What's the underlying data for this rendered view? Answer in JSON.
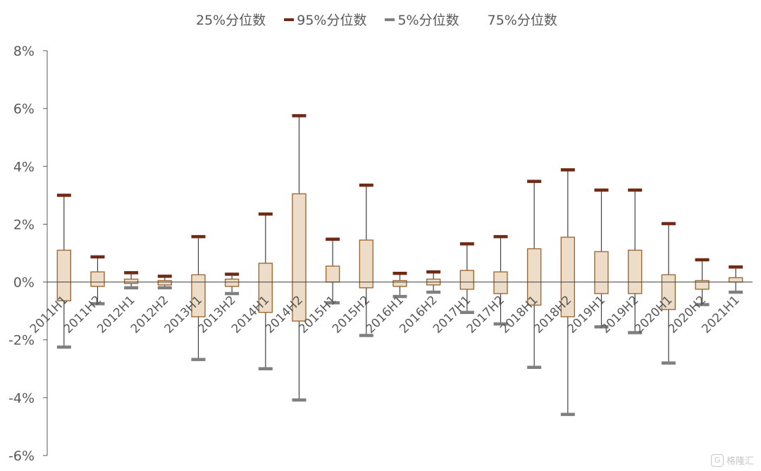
{
  "legend": [
    {
      "label": "25%分位数",
      "color": "",
      "has_swatch": false
    },
    {
      "label": "95%分位数",
      "color": "#6e2a14",
      "has_swatch": true
    },
    {
      "label": "5%分位数",
      "color": "#7f7f7f",
      "has_swatch": true
    },
    {
      "label": "75%分位数",
      "color": "",
      "has_swatch": false
    }
  ],
  "watermark": {
    "icon_text": "G",
    "text": "格隆汇"
  },
  "chart_data": {
    "type": "boxplot",
    "title": "",
    "xlabel": "",
    "ylabel": "",
    "ylim": [
      -6,
      8
    ],
    "yticks": [
      -6,
      -4,
      -2,
      0,
      2,
      4,
      6,
      8
    ],
    "ytick_labels": [
      "-6%",
      "-4%",
      "-2%",
      "0%",
      "2%",
      "4%",
      "6%",
      "8%"
    ],
    "grid": false,
    "legend_position": "top",
    "colors": {
      "box_fill": "#ecdcc8",
      "box_stroke": "#9e6a36",
      "p95": "#6e2a14",
      "p5": "#7f7f7f",
      "whisker": "#404040",
      "axis": "#595959"
    },
    "categories": [
      "2011H1",
      "2011H2",
      "2012H1",
      "2012H2",
      "2013H1",
      "2013H2",
      "2014H1",
      "2014H2",
      "2015H1",
      "2015H2",
      "2016H1",
      "2016H2",
      "2017H1",
      "2017H2",
      "2018H1",
      "2018H2",
      "2019H1",
      "2019H2",
      "2020H1",
      "2020H2",
      "2021H1"
    ],
    "series": [
      {
        "name": "25%分位数",
        "values": [
          -0.65,
          -0.15,
          -0.05,
          -0.1,
          -1.2,
          -0.15,
          -1.05,
          -1.35,
          0.0,
          -0.2,
          -0.15,
          -0.1,
          -0.25,
          -0.4,
          -0.8,
          -1.2,
          -0.4,
          -0.4,
          -0.95,
          -0.25,
          0.0
        ]
      },
      {
        "name": "75%分位数",
        "values": [
          1.1,
          0.35,
          0.1,
          0.05,
          0.25,
          0.1,
          0.65,
          3.05,
          0.55,
          1.45,
          0.05,
          0.1,
          0.4,
          0.35,
          1.15,
          1.55,
          1.05,
          1.1,
          0.25,
          0.05,
          0.15
        ]
      },
      {
        "name": "95%分位数",
        "values": [
          3.0,
          0.87,
          0.32,
          0.2,
          1.57,
          0.27,
          2.35,
          5.75,
          1.48,
          3.35,
          0.3,
          0.35,
          1.32,
          1.57,
          3.48,
          3.88,
          3.18,
          3.18,
          2.02,
          0.77,
          0.52
        ]
      },
      {
        "name": "5%分位数",
        "values": [
          -2.25,
          -0.75,
          -0.2,
          -0.2,
          -2.68,
          -0.4,
          -3.0,
          -4.08,
          -0.72,
          -1.85,
          -0.5,
          -0.35,
          -1.05,
          -1.45,
          -2.95,
          -4.58,
          -1.55,
          -1.75,
          -2.8,
          -0.78,
          -0.35
        ]
      }
    ]
  }
}
